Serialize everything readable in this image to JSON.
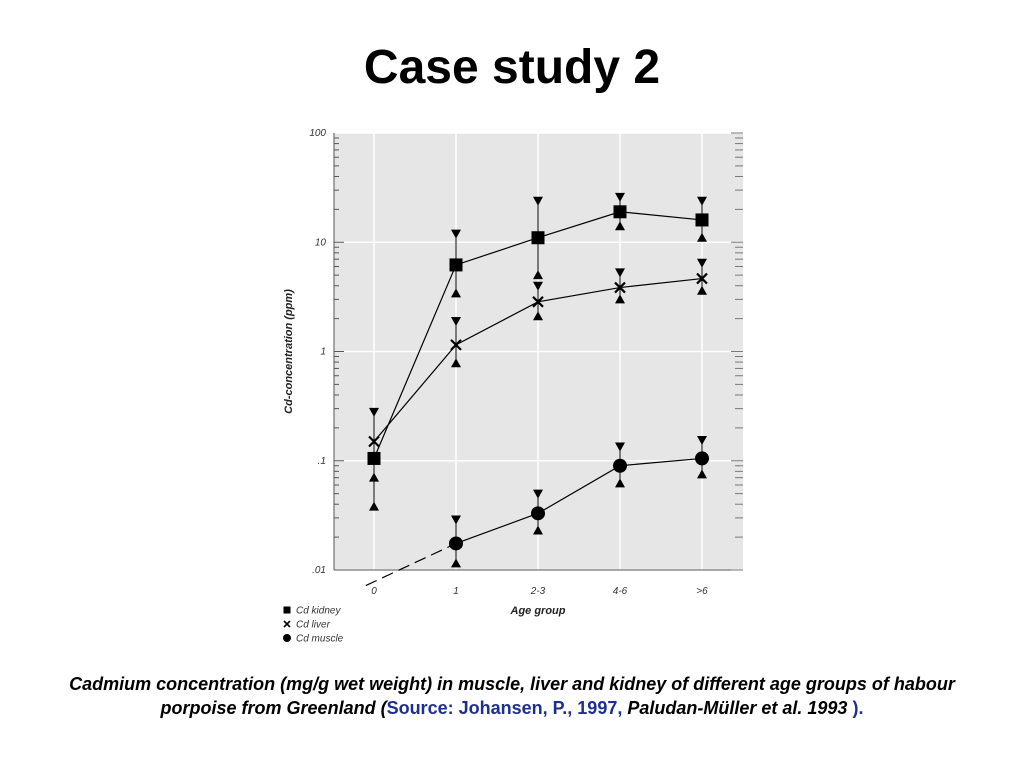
{
  "slide": {
    "title": "Case study 2"
  },
  "chart_data": {
    "type": "line",
    "y_scale": "log",
    "ylim": [
      0.01,
      100
    ],
    "y_ticks": [
      {
        "v": 100,
        "label": "100"
      },
      {
        "v": 10,
        "label": "10"
      },
      {
        "v": 1,
        "label": "1"
      },
      {
        "v": 0.1,
        "label": ".1"
      },
      {
        "v": 0.01,
        "label": ".01"
      }
    ],
    "categories": [
      "0",
      "1",
      "2-3",
      "4-6",
      ">6"
    ],
    "xlabel": "Age group",
    "ylabel": "Cd-concentration (ppm)",
    "grid": true,
    "legend_position": "bottom-left",
    "series": [
      {
        "name": "Cd kidney",
        "marker": "square",
        "values": [
          0.105,
          6.2,
          11.0,
          19.0,
          16.0
        ],
        "upper": [
          0.28,
          12.0,
          24.0,
          26.0,
          24.0
        ],
        "lower": [
          0.038,
          3.4,
          5.0,
          14.0,
          11.0
        ]
      },
      {
        "name": "Cd liver",
        "marker": "cross",
        "values": [
          0.15,
          1.15,
          2.85,
          3.85,
          4.65
        ],
        "upper": [
          null,
          1.9,
          4.0,
          5.3,
          6.5
        ],
        "lower": [
          0.07,
          0.78,
          2.1,
          3.0,
          3.6
        ]
      },
      {
        "name": "Cd muscle",
        "marker": "circle",
        "values": [
          null,
          0.0175,
          0.033,
          0.09,
          0.105
        ],
        "upper": [
          null,
          0.029,
          0.05,
          0.135,
          0.155
        ],
        "lower": [
          null,
          0.0115,
          0.023,
          0.062,
          0.075
        ],
        "extrapolated": {
          "from_x": -0.1,
          "from_y": 0.0072,
          "to_index": 1
        }
      }
    ]
  },
  "caption": {
    "text_before": "Cadmium concentration (mg/g wet weight) in muscle, liver and kidney of different age groups of habour porpoise from Greenland (",
    "source": "Source: Johansen, P., 1997",
    "comma": ",",
    "authors": " Paludan-Müller et al. 1993 ",
    "closing": ")."
  }
}
